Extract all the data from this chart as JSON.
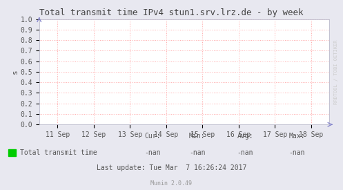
{
  "title": "Total transmit time IPv4 stun1.srv.lrz.de - by week",
  "ylabel": "s",
  "bg_color": "#e8e8f0",
  "plot_bg_color": "#ffffff",
  "grid_color": "#ffaaaa",
  "border_color": "#bbbbcc",
  "x_labels": [
    "11 Sep",
    "12 Sep",
    "13 Sep",
    "14 Sep",
    "15 Sep",
    "16 Sep",
    "17 Sep",
    "18 Sep"
  ],
  "x_ticks": [
    0,
    1,
    2,
    3,
    4,
    5,
    6,
    7
  ],
  "ylim": [
    0.0,
    1.0
  ],
  "yticks": [
    0.0,
    0.1,
    0.2,
    0.3,
    0.4,
    0.5,
    0.6,
    0.7,
    0.8,
    0.9,
    1.0
  ],
  "legend_label": "Total transmit time",
  "legend_color": "#00cc00",
  "cur_label": "Cur:",
  "cur_val": "-nan",
  "min_label": "Min:",
  "min_val": "-nan",
  "avg_label": "Avg:",
  "avg_val": "-nan",
  "max_label": "Max:",
  "max_val": "-nan",
  "last_update": "Last update: Tue Mar  7 16:26:24 2017",
  "munin_version": "Munin 2.0.49",
  "watermark": "RRDTOOL / TOBI OETIKER",
  "title_color": "#444444",
  "text_color": "#555555",
  "arrow_color": "#8888cc",
  "font_family": "DejaVu Sans Mono",
  "title_fontsize": 9,
  "tick_fontsize": 7,
  "legend_fontsize": 7,
  "stats_fontsize": 7,
  "update_fontsize": 7,
  "munin_fontsize": 6
}
